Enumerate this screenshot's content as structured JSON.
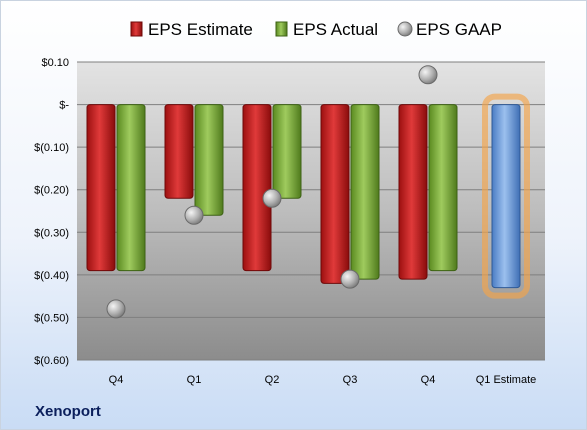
{
  "company": "Xenoport",
  "chart_data": {
    "type": "bar",
    "categories": [
      "Q4",
      "Q1",
      "Q2",
      "Q3",
      "Q4",
      "Q1 Estimate"
    ],
    "series": [
      {
        "name": "EPS Estimate",
        "values": [
          -0.39,
          -0.22,
          -0.39,
          -0.42,
          -0.41,
          -0.43
        ],
        "color": "#c00000"
      },
      {
        "name": "EPS Actual",
        "values": [
          -0.39,
          -0.26,
          -0.22,
          -0.41,
          -0.39,
          null
        ],
        "color": "#70a030"
      },
      {
        "name": "EPS GAAP",
        "values": [
          -0.48,
          -0.26,
          -0.22,
          -0.41,
          0.07,
          null
        ],
        "color": "#a6a6a6",
        "marker": "circle"
      }
    ],
    "forecast_bar": {
      "category": "Q1 Estimate",
      "color": "#5b8fd6",
      "glow": "#f5a54a"
    },
    "ylim": [
      -0.6,
      0.1
    ],
    "yticks": [
      0.1,
      0,
      -0.1,
      -0.2,
      -0.3,
      -0.4,
      -0.5,
      -0.6
    ],
    "ytick_labels": [
      "$0.10",
      "$-",
      "$(0.10)",
      "$(0.20)",
      "$(0.30)",
      "$(0.40)",
      "$(0.50)",
      "$(0.60)"
    ],
    "grid": true,
    "legend": "top"
  }
}
